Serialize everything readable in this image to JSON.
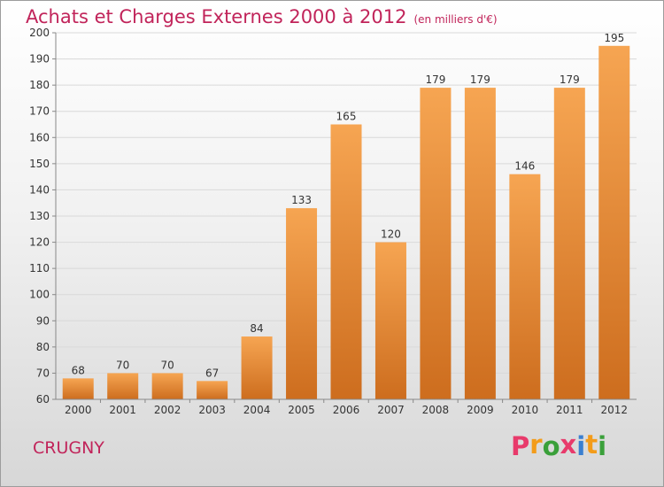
{
  "header": {
    "title": "Achats et Charges Externes 2000 à 2012",
    "subtitle": "(en milliers d'€)"
  },
  "footer": {
    "commune": "CRUGNY",
    "logo_text": "Proxiti"
  },
  "colors": {
    "title": "#c1245a",
    "bar_top": "#f6a552",
    "bar_bottom": "#cd6d1e",
    "logo_letters": [
      "#e83a6b",
      "#f39c1a",
      "#3aa03a",
      "#e83a6b",
      "#3a7fd0",
      "#f39c1a",
      "#3aa03a"
    ]
  },
  "chart_data": {
    "type": "bar",
    "categories": [
      "2000",
      "2001",
      "2002",
      "2003",
      "2004",
      "2005",
      "2006",
      "2007",
      "2008",
      "2009",
      "2010",
      "2011",
      "2012"
    ],
    "values": [
      68,
      70,
      70,
      67,
      84,
      133,
      165,
      120,
      179,
      179,
      146,
      179,
      195
    ],
    "title": "Achats et Charges Externes 2000 à 2012",
    "subtitle": "(en milliers d'€)",
    "xlabel": "",
    "ylabel": "",
    "ylim": [
      60,
      200
    ],
    "yticks": [
      60,
      70,
      80,
      90,
      100,
      110,
      120,
      130,
      140,
      150,
      160,
      170,
      180,
      190,
      200
    ],
    "grid": true,
    "legend": "none"
  }
}
